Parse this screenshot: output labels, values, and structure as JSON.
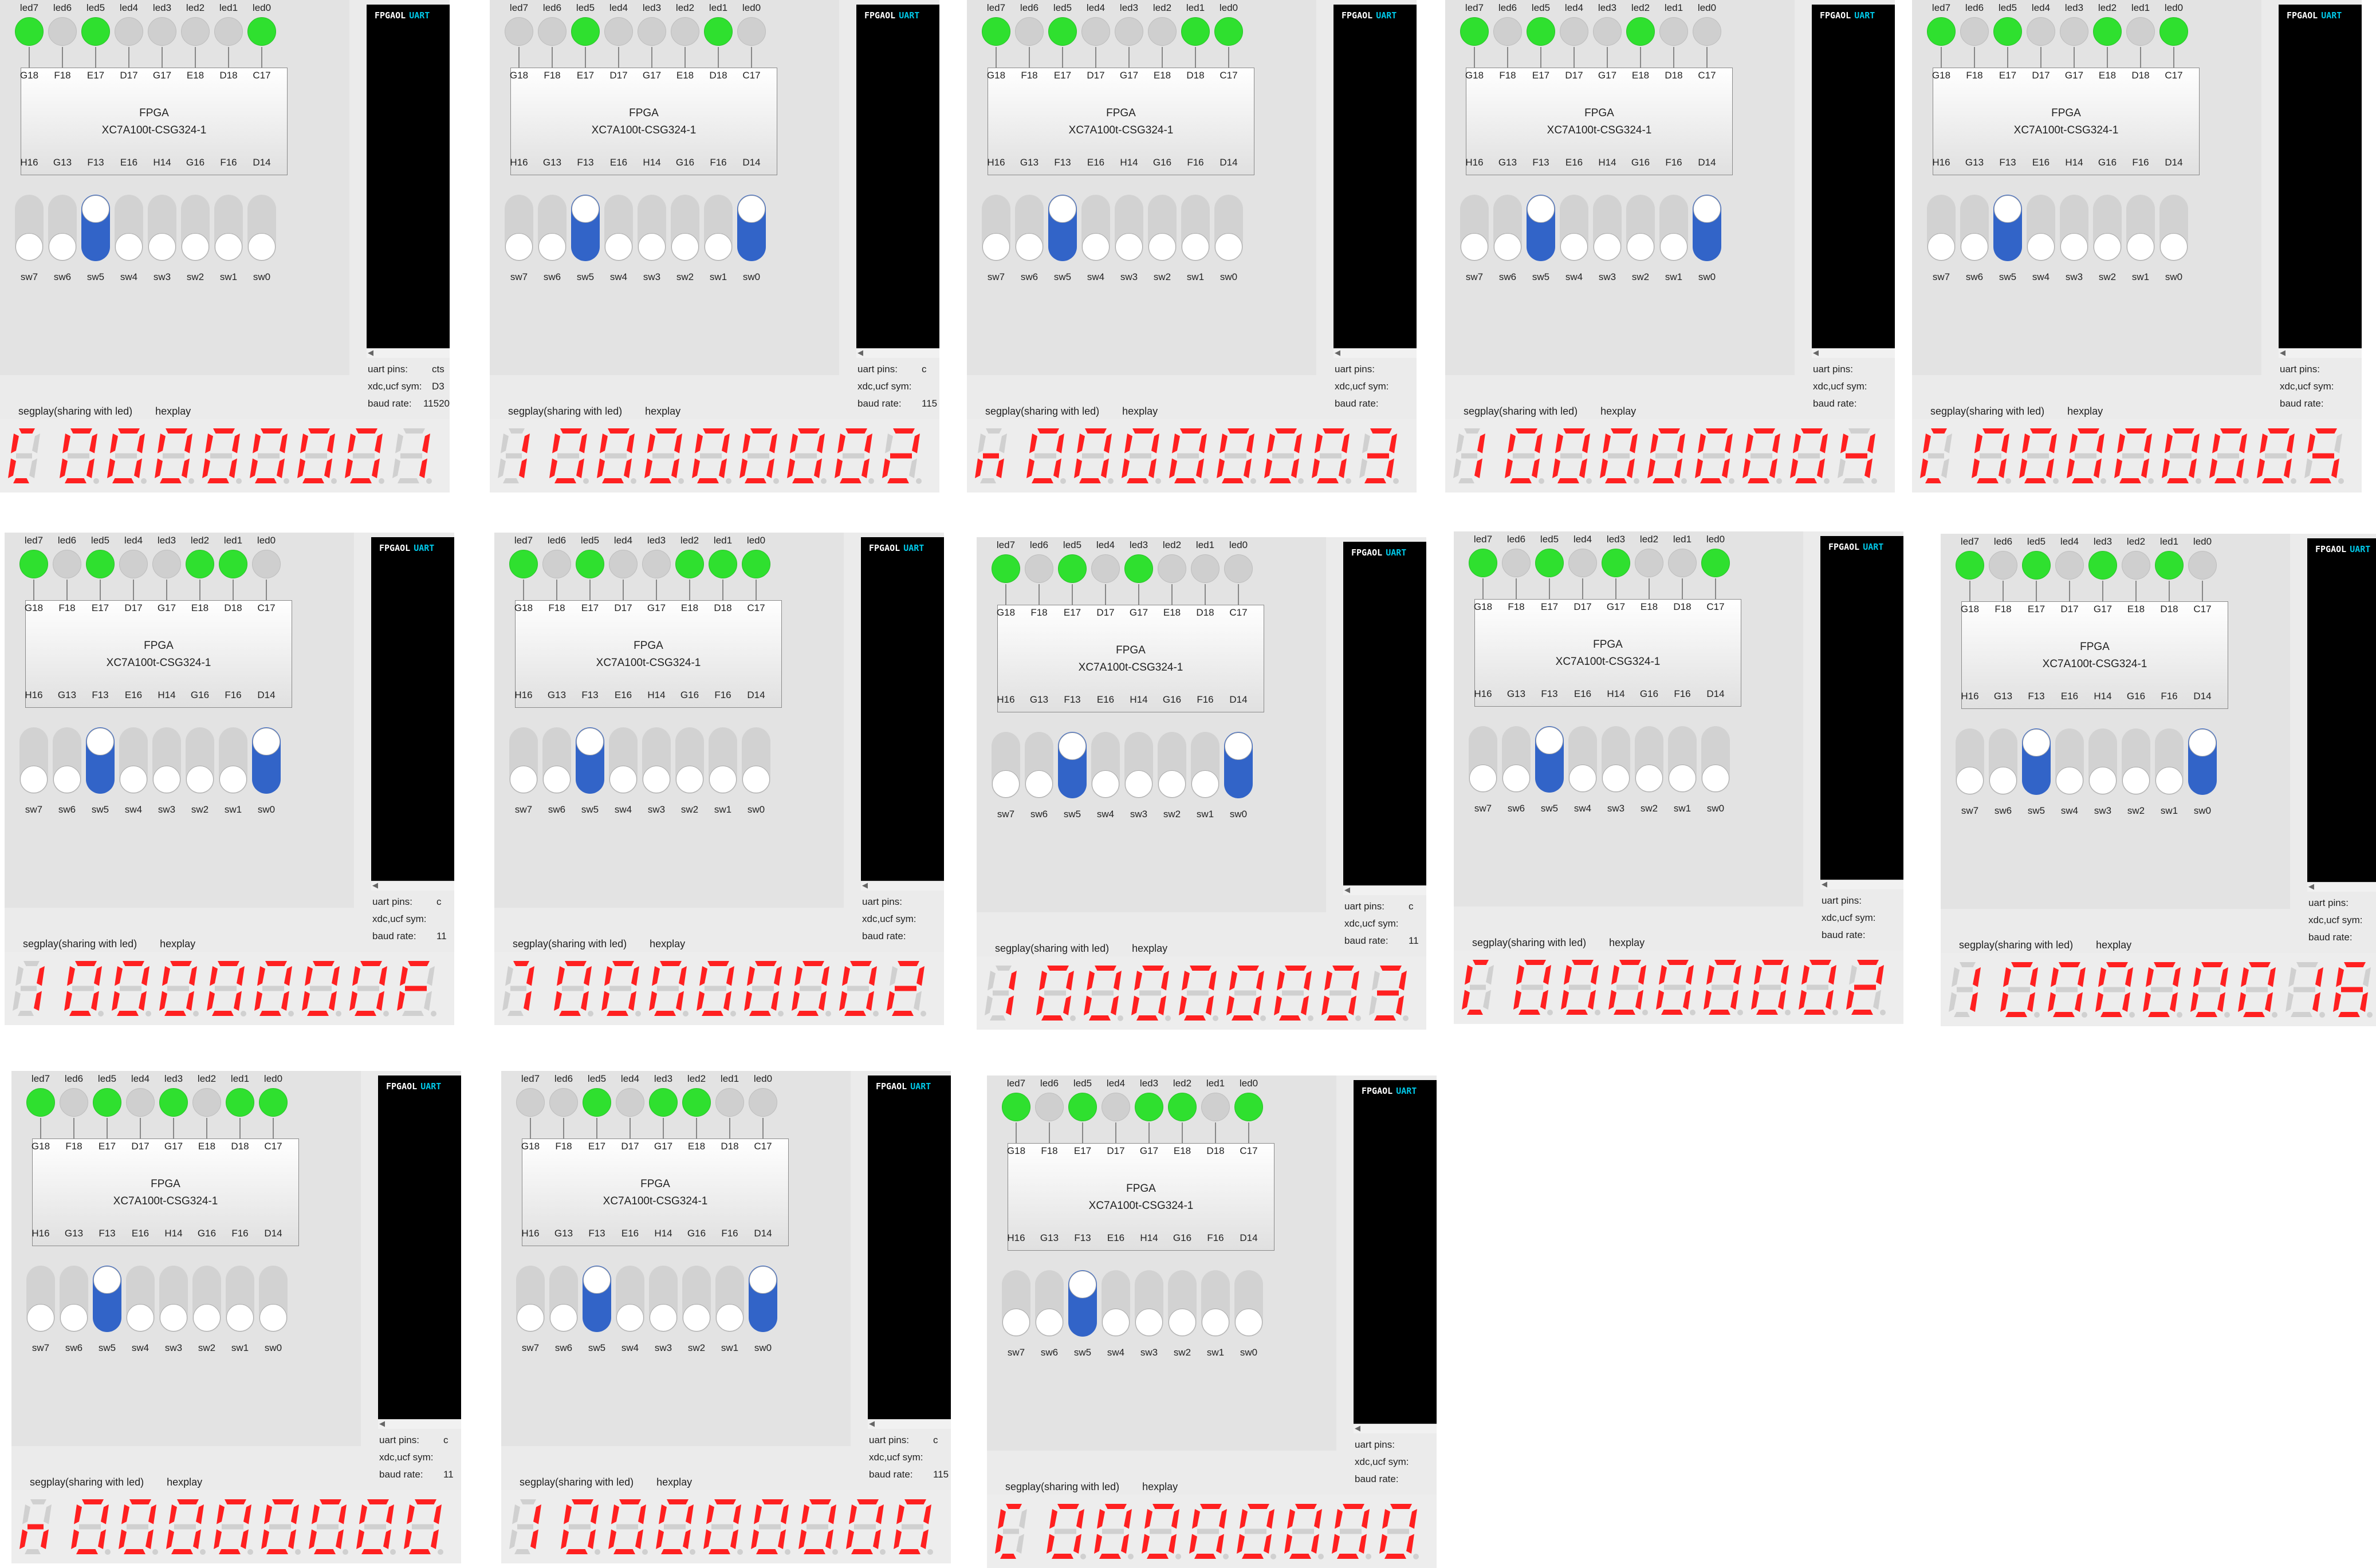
{
  "labels": {
    "leds": [
      "led7",
      "led6",
      "led5",
      "led4",
      "led3",
      "led2",
      "led1",
      "led0"
    ],
    "top_pins": [
      "G18",
      "F18",
      "E17",
      "D17",
      "G17",
      "E18",
      "D18",
      "C17"
    ],
    "bottom_pins": [
      "H16",
      "G13",
      "F13",
      "E16",
      "H14",
      "G16",
      "F16",
      "D14"
    ],
    "switches": [
      "sw7",
      "sw6",
      "sw5",
      "sw4",
      "sw3",
      "sw2",
      "sw1",
      "sw0"
    ],
    "chip_title": "FPGA",
    "chip_part": "XC7A100t-CSG324-1",
    "terminal_brand": "FPGAOL",
    "terminal_mode": "UART",
    "uart_pins": "uart pins:",
    "xdc_sym": "xdc,ucf sym:",
    "baud_rate": "baud rate:",
    "seg_tab": "segplay(sharing with led)",
    "hex_tab": "hexplay"
  },
  "colors": {
    "led_on": "#2fe02f",
    "led_off": "#cfcfcf",
    "switch_on": "#3264c8",
    "switch_off": "#d2d2d2",
    "segment_on": "#ff2020",
    "segment_off": "#d0d0d0",
    "terminal_bg": "#000000",
    "terminal_accent": "#00c8e8"
  },
  "panels": [
    {
      "leds": [
        1,
        0,
        1,
        0,
        0,
        0,
        0,
        1
      ],
      "switches": [
        0,
        0,
        1,
        0,
        0,
        0,
        0,
        0
      ],
      "hex": "00000001",
      "first_digit": "C",
      "uart_values": [
        "cts",
        "D3",
        "11520"
      ]
    },
    {
      "leds": [
        0,
        0,
        1,
        0,
        0,
        0,
        1,
        0
      ],
      "switches": [
        0,
        0,
        1,
        0,
        0,
        0,
        0,
        1
      ],
      "hex": "00000002",
      "first_digit": "1",
      "uart_values": [
        "c",
        "",
        "115"
      ]
    },
    {
      "leds": [
        1,
        0,
        1,
        0,
        0,
        0,
        1,
        1
      ],
      "switches": [
        0,
        0,
        1,
        0,
        0,
        0,
        0,
        0
      ],
      "hex": "00000003",
      "first_digit": "n",
      "uart_values": [
        "",
        "",
        ""
      ]
    },
    {
      "leds": [
        1,
        0,
        1,
        0,
        0,
        1,
        0,
        0
      ],
      "switches": [
        0,
        0,
        1,
        0,
        0,
        0,
        0,
        1
      ],
      "hex": "00000004",
      "first_digit": "1",
      "uart_values": [
        "",
        "",
        ""
      ]
    },
    {
      "leds": [
        1,
        0,
        1,
        0,
        0,
        1,
        0,
        1
      ],
      "switches": [
        0,
        0,
        1,
        0,
        0,
        0,
        0,
        0
      ],
      "hex": "00000005",
      "first_digit": "C",
      "uart_values": [
        "",
        "",
        ""
      ]
    },
    {
      "leds": [
        1,
        0,
        1,
        0,
        0,
        1,
        1,
        0
      ],
      "switches": [
        0,
        0,
        1,
        0,
        0,
        0,
        0,
        1
      ],
      "hex": "0000000F",
      "first_digit": "1",
      "uart_values": [
        "c",
        "",
        "11"
      ]
    },
    {
      "leds": [
        1,
        0,
        1,
        0,
        0,
        1,
        1,
        1
      ],
      "switches": [
        0,
        0,
        1,
        0,
        0,
        0,
        0,
        0
      ],
      "hex": "00000002",
      "first_digit": "7",
      "uart_values": [
        "",
        "",
        ""
      ]
    },
    {
      "leds": [
        1,
        0,
        1,
        0,
        1,
        0,
        0,
        0
      ],
      "switches": [
        0,
        0,
        1,
        0,
        0,
        0,
        0,
        1
      ],
      "hex": "00000003",
      "first_digit": "1",
      "uart_values": [
        "c",
        "",
        "11"
      ]
    },
    {
      "leds": [
        1,
        0,
        1,
        0,
        1,
        0,
        0,
        1
      ],
      "switches": [
        0,
        0,
        1,
        0,
        0,
        0,
        0,
        0
      ],
      "hex": "00000002",
      "first_digit": "C",
      "uart_values": [
        "",
        "",
        ""
      ]
    },
    {
      "leds": [
        1,
        0,
        1,
        0,
        1,
        0,
        1,
        0
      ],
      "switches": [
        0,
        0,
        1,
        0,
        0,
        0,
        0,
        1
      ],
      "hex": "00000016",
      "first_digit": "1",
      "uart_values": [
        "",
        "",
        ""
      ]
    },
    {
      "leds": [
        1,
        0,
        1,
        0,
        1,
        0,
        1,
        1
      ],
      "switches": [
        0,
        0,
        1,
        0,
        0,
        0,
        0,
        0
      ],
      "hex": "00000000",
      "first_digit": "n",
      "uart_values": [
        "c",
        "",
        "11"
      ]
    },
    {
      "leds": [
        0,
        0,
        1,
        0,
        1,
        1,
        0,
        0
      ],
      "switches": [
        0,
        0,
        1,
        0,
        0,
        0,
        0,
        1
      ],
      "hex": "00000000",
      "first_digit": "1",
      "uart_values": [
        "c",
        "",
        "115"
      ]
    },
    {
      "leds": [
        1,
        0,
        1,
        0,
        1,
        1,
        0,
        1
      ],
      "switches": [
        0,
        0,
        1,
        0,
        0,
        0,
        0,
        0
      ],
      "hex": "00000000",
      "first_digit": "C",
      "uart_values": [
        "",
        "",
        ""
      ]
    }
  ]
}
